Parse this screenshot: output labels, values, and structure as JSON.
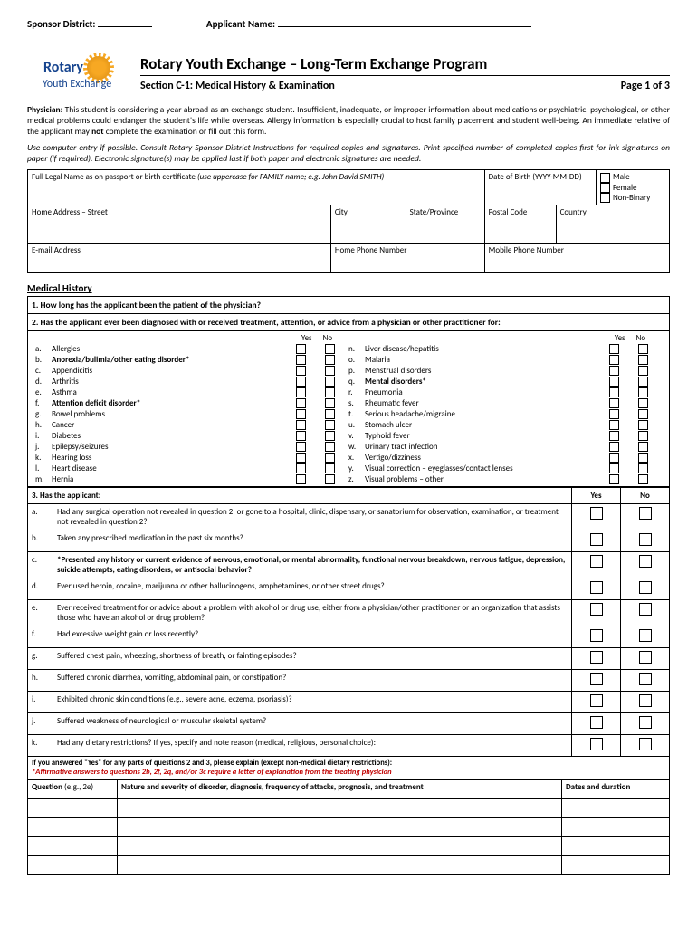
{
  "top": {
    "sponsor_label": "Sponsor District:",
    "applicant_label": "Applicant Name:"
  },
  "logo": {
    "brand": "Rotary",
    "sub": "Youth Exchange"
  },
  "title": "Rotary Youth Exchange – Long-Term Exchange Program",
  "subtitle": "Section C-1:  Medical History & Examination",
  "page": "Page 1 of 3",
  "instr1_label": "Physician:",
  "instr1": " This student is considering a year abroad as an exchange student. Insufficient, inadequate, or improper information about medications or psychiatric, psychological, or other medical problems could endanger the student's life while overseas. Allergy information is especially crucial to host family placement and student well-being. An immediate relative of the applicant may ",
  "instr1_not": "not",
  "instr1_end": " complete the examination or fill out this form.",
  "instr2": "Use computer entry if possible. Consult Rotary Sponsor District Instructions for required copies and signatures. Print specified number of completed copies first for ink signatures on paper (if required).  Electronic signature(s) may be applied last if both paper and electronic signatures are needed.",
  "info": {
    "name_label": "Full Legal Name as on passport or birth certificate ",
    "name_hint": "(use uppercase for FAMILY name; e.g. John David SMITH)",
    "dob_label": "Date of Birth (YYYY-MM-DD)",
    "gender": [
      "Male",
      "Female",
      "Non-Binary"
    ],
    "street": "Home Address – Street",
    "city": "City",
    "state": "State/Province",
    "postal": "Postal Code",
    "country": "Country",
    "email": "E-mail Address",
    "home_phone": "Home Phone Number",
    "mobile": "Mobile Phone Number"
  },
  "mh_title": "Medical History",
  "q1": "1. How long has the applicant been the patient of the physician?",
  "q2": "2. Has the applicant ever been diagnosed with or received treatment, attention, or advice from a physician or other practitioner for:",
  "yes": "Yes",
  "no": "No",
  "conds_left": [
    {
      "l": "a.",
      "t": "Allergies",
      "b": false
    },
    {
      "l": "b.",
      "t": "Anorexia/bulimia/other eating disorder*",
      "b": true
    },
    {
      "l": "c.",
      "t": "Appendicitis",
      "b": false
    },
    {
      "l": "d.",
      "t": "Arthritis",
      "b": false
    },
    {
      "l": "e.",
      "t": "Asthma",
      "b": false
    },
    {
      "l": "f.",
      "t": "Attention deficit disorder*",
      "b": true
    },
    {
      "l": "g.",
      "t": "Bowel problems",
      "b": false
    },
    {
      "l": "h.",
      "t": "Cancer",
      "b": false
    },
    {
      "l": "i.",
      "t": "Diabetes",
      "b": false
    },
    {
      "l": "j.",
      "t": "Epilepsy/seizures",
      "b": false
    },
    {
      "l": "k.",
      "t": "Hearing loss",
      "b": false
    },
    {
      "l": "l.",
      "t": "Heart disease",
      "b": false
    },
    {
      "l": "m.",
      "t": "Hernia",
      "b": false
    }
  ],
  "conds_right": [
    {
      "l": "n.",
      "t": "Liver disease/hepatitis",
      "b": false
    },
    {
      "l": "o.",
      "t": "Malaria",
      "b": false
    },
    {
      "l": "p.",
      "t": "Menstrual disorders",
      "b": false
    },
    {
      "l": "q.",
      "t": "Mental disorders*",
      "b": true
    },
    {
      "l": "r.",
      "t": "Pneumonia",
      "b": false
    },
    {
      "l": "s.",
      "t": "Rheumatic fever",
      "b": false
    },
    {
      "l": "t.",
      "t": "Serious headache/migraine",
      "b": false
    },
    {
      "l": "u.",
      "t": "Stomach ulcer",
      "b": false
    },
    {
      "l": "v.",
      "t": "Typhoid fever",
      "b": false
    },
    {
      "l": "w.",
      "t": "Urinary tract infection",
      "b": false
    },
    {
      "l": "x.",
      "t": "Vertigo/dizziness",
      "b": false
    },
    {
      "l": "y.",
      "t": "Visual correction – eyeglasses/contact lenses",
      "b": false
    },
    {
      "l": "z.",
      "t": "Visual problems – other",
      "b": false
    }
  ],
  "q3": "3.  Has the applicant:",
  "q3_items": [
    {
      "l": "a.",
      "t": "Had any surgical operation not revealed in question 2, or gone to a hospital, clinic, dispensary, or sanatorium for observation, examination, or treatment not revealed in question 2?",
      "b": false
    },
    {
      "l": "b.",
      "t": "Taken any prescribed medication in the past six months?",
      "b": false
    },
    {
      "l": "c.",
      "t": "*Presented any history or current evidence of nervous, emotional, or mental abnormality, functional nervous breakdown, nervous fatigue, depression, suicide attempts, eating disorders, or antisocial behavior?",
      "b": true
    },
    {
      "l": "d.",
      "t": "Ever used heroin, cocaine, marijuana or other hallucinogens, amphetamines, or other street drugs?",
      "b": false
    },
    {
      "l": "e.",
      "t": "Ever received treatment for or advice about a problem with alcohol or drug use, either from a physician/other practitioner or an organization that assists those who have an alcohol or drug problem?",
      "b": false
    },
    {
      "l": "f.",
      "t": "Had excessive weight gain or loss recently?",
      "b": false
    },
    {
      "l": "g.",
      "t": "Suffered chest pain, wheezing, shortness of breath, or fainting episodes?",
      "b": false
    },
    {
      "l": "h.",
      "t": "Suffered chronic diarrhea, vomiting, abdominal pain, or constipation?",
      "b": false
    },
    {
      "l": "i.",
      "t": "Exhibited chronic skin conditions (e.g., severe acne, eczema, psoriasis)?",
      "b": false
    },
    {
      "l": "j.",
      "t": "Suffered weakness of neurological or muscular skeletal system?",
      "b": false
    },
    {
      "l": "k.",
      "t": "Had any dietary restrictions? If yes, specify and note reason (medical, religious, personal choice):",
      "b": false
    }
  ],
  "explain_note1": "If you answered \"Yes\" for any parts of questions 2 and 3, please explain (except non-medical dietary restrictions):",
  "explain_note2": "*Affirmative answers to questions 2b, 2f, 2q, and/or 3c  require a letter of explanation  from the treating physician",
  "explain_h1": "Question",
  "explain_h1_eg": " (e.g., 2e)",
  "explain_h2": "Nature and severity of disorder, diagnosis, frequency of attacks, prognosis, and treatment",
  "explain_h3": "Dates and duration"
}
